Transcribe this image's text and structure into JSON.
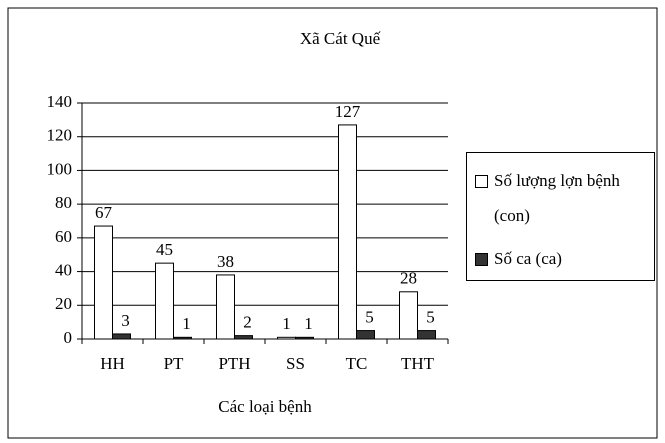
{
  "chart_data": {
    "type": "bar",
    "title": "Xã Cát Quế",
    "x_label": "Các loại bệnh",
    "categories": [
      "HH",
      "PT",
      "PTH",
      "SS",
      "TC",
      "THT"
    ],
    "series": [
      {
        "name": "Số lượng lợn bệnh (con)",
        "color": "#ffffff",
        "values": [
          67,
          45,
          38,
          1,
          127,
          28
        ]
      },
      {
        "name": "Số ca (ca)",
        "color": "#333333",
        "values": [
          3,
          1,
          2,
          1,
          5,
          5
        ]
      }
    ],
    "ylim": [
      0,
      140
    ],
    "yticks": [
      0,
      20,
      40,
      60,
      80,
      100,
      120,
      140
    ],
    "grid": true,
    "legend": "right"
  }
}
